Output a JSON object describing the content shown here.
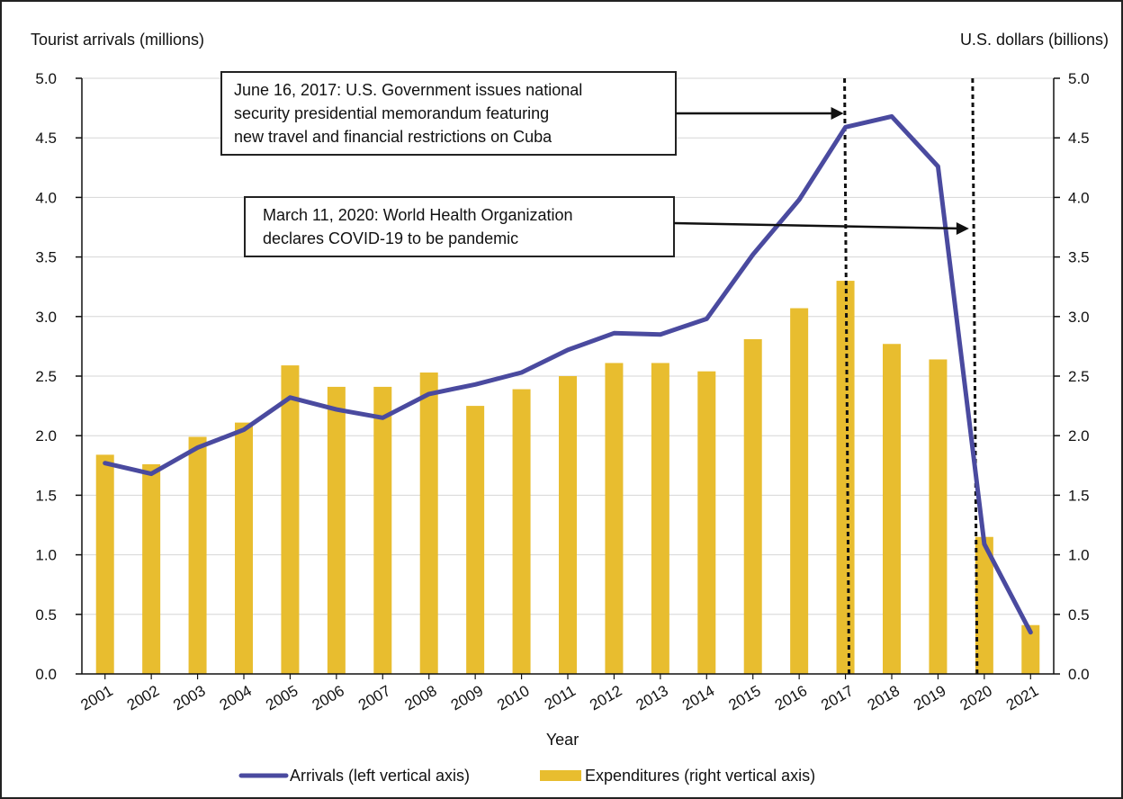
{
  "chart_data": {
    "type": "bar",
    "xlabel": "Year",
    "ylabel_left": "Tourist arrivals (millions)",
    "ylabel_right": "U.S. dollars (billions)",
    "ylim_left": [
      0,
      5
    ],
    "ylim_right": [
      0,
      5
    ],
    "yticks": [
      "0.0",
      "0.5",
      "1.0",
      "1.5",
      "2.0",
      "2.5",
      "3.0",
      "3.5",
      "4.0",
      "4.5",
      "5.0"
    ],
    "grid": true,
    "legend_position": "bottom",
    "categories": [
      "2001",
      "2002",
      "2003",
      "2004",
      "2005",
      "2006",
      "2007",
      "2008",
      "2009",
      "2010",
      "2011",
      "2012",
      "2013",
      "2014",
      "2015",
      "2016",
      "2017",
      "2018",
      "2019",
      "2020",
      "2021"
    ],
    "series": [
      {
        "name": "Expenditures (right vertical axis)",
        "type": "bar",
        "axis": "right",
        "color": "#e8bd2f",
        "values": [
          1.84,
          1.76,
          1.99,
          2.11,
          2.59,
          2.41,
          2.41,
          2.53,
          2.25,
          2.39,
          2.5,
          2.61,
          2.61,
          2.54,
          2.81,
          3.07,
          3.3,
          2.77,
          2.64,
          1.15,
          0.41
        ]
      },
      {
        "name": "Arrivals (left vertical axis)",
        "type": "line",
        "axis": "left",
        "color": "#4a4a9f",
        "values": [
          1.77,
          1.68,
          1.9,
          2.05,
          2.32,
          2.22,
          2.15,
          2.35,
          2.43,
          2.53,
          2.72,
          2.86,
          2.85,
          2.98,
          3.52,
          3.98,
          4.59,
          4.68,
          4.26,
          1.09,
          0.35
        ]
      }
    ],
    "annotations": [
      {
        "lines": [
          "June 16, 2017: U.S. Government issues national",
          "security presidential memorandum featuring",
          "new travel and financial restrictions on Cuba"
        ],
        "x": "2017"
      },
      {
        "lines": [
          "March 11, 2020: World Health Organization",
          "declares COVID-19 to be pandemic"
        ],
        "x": "2020"
      }
    ]
  }
}
